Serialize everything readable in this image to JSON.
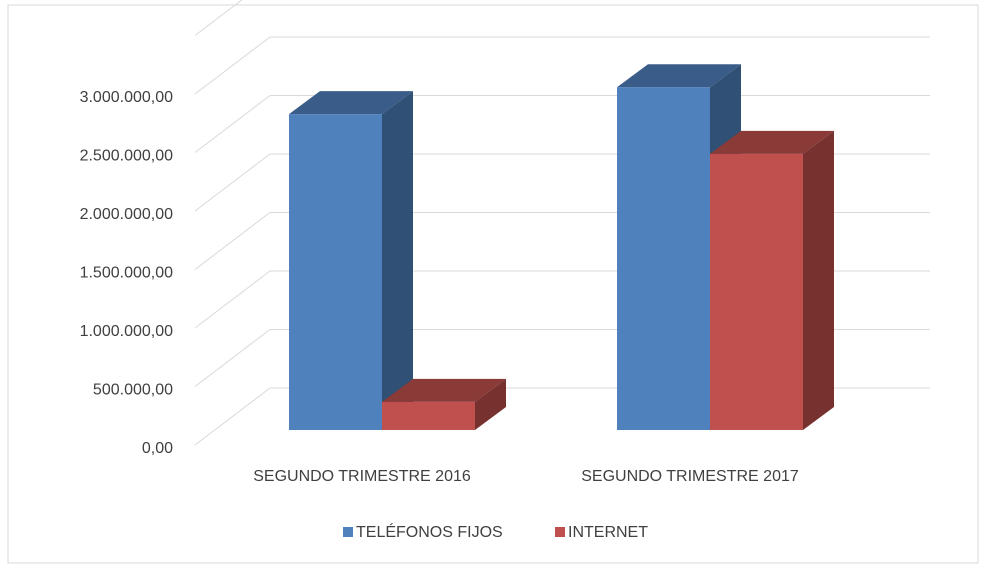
{
  "chart_data": {
    "type": "bar3d",
    "categories": [
      "SEGUNDO TRIMESTRE 2016",
      "SEGUNDO TRIMESTRE 2017"
    ],
    "series": [
      {
        "name": "TELÉFONOS FIJOS",
        "color": "#4f81bd",
        "values": [
          2700000,
          2930000
        ]
      },
      {
        "name": "INTERNET",
        "color": "#c0504d",
        "values": [
          240000,
          2360000
        ]
      }
    ],
    "ylim": [
      0,
      3500000
    ],
    "yticks": [
      {
        "value": 0,
        "label": "0,00"
      },
      {
        "value": 500000,
        "label": "500.000,00"
      },
      {
        "value": 1000000,
        "label": "1.000.000,00"
      },
      {
        "value": 1500000,
        "label": "1.500.000,00"
      },
      {
        "value": 2000000,
        "label": "2.000.000,00"
      },
      {
        "value": 2500000,
        "label": "2.500.000,00"
      },
      {
        "value": 3000000,
        "label": "3.000.000,00"
      }
    ],
    "grid": true,
    "legend": "bottom"
  }
}
